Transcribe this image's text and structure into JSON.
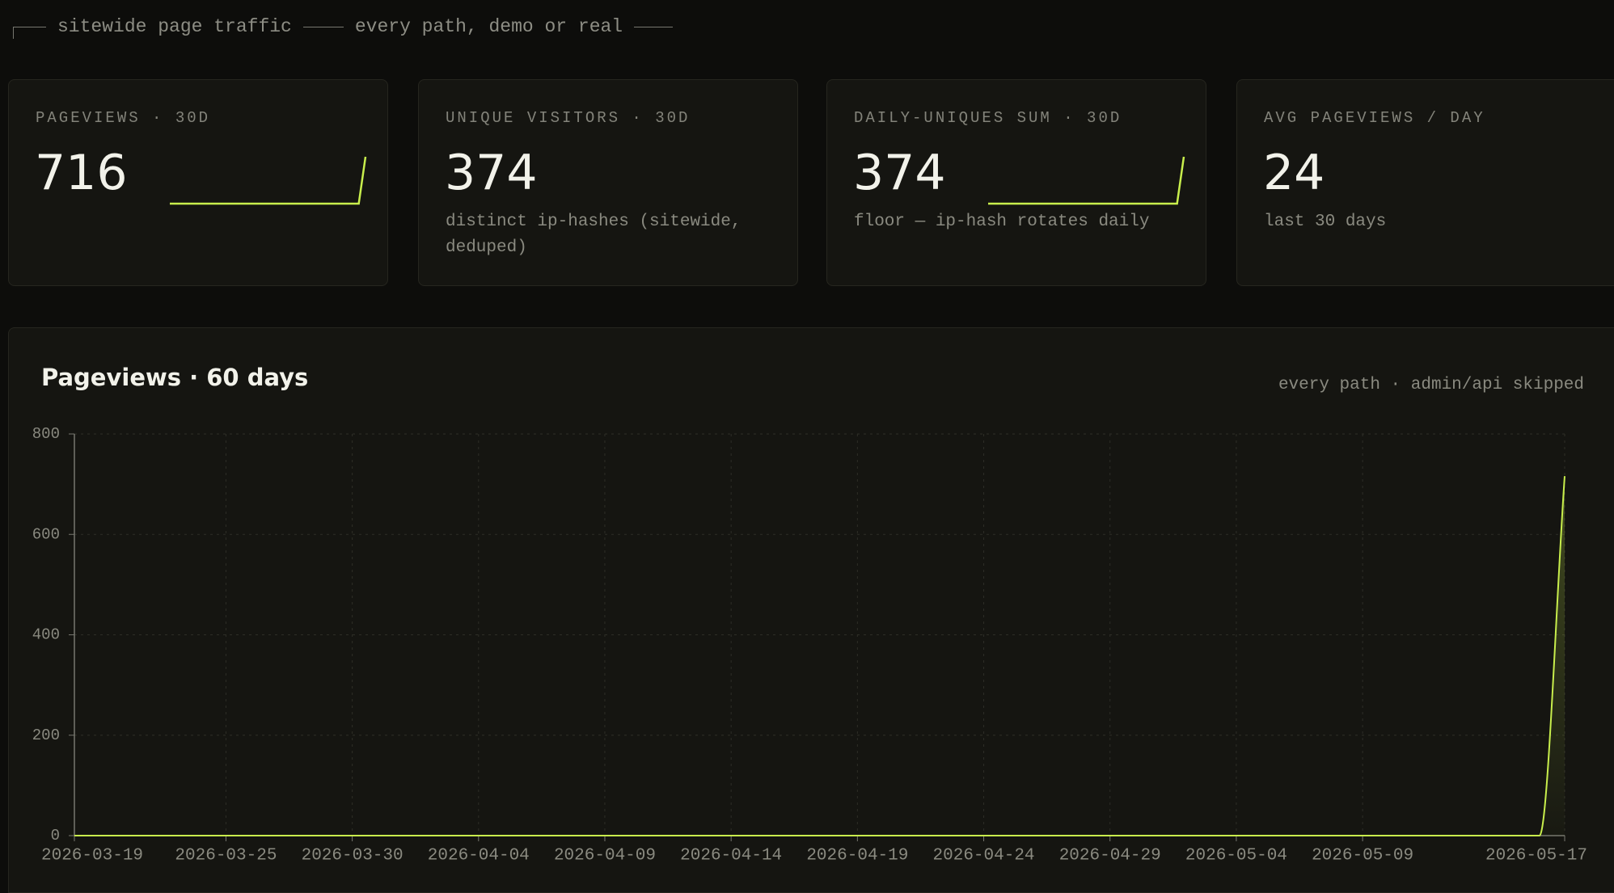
{
  "header": {
    "title": "sitewide page traffic",
    "subtitle": "every path, demo or real"
  },
  "cards": [
    {
      "label": "PAGEVIEWS · 30D",
      "value": 716,
      "sparkline": [
        0,
        0,
        0,
        0,
        0,
        0,
        0,
        0,
        0,
        0,
        0,
        0,
        0,
        0,
        0,
        0,
        0,
        0,
        0,
        0,
        0,
        0,
        0,
        0,
        0,
        0,
        0,
        0,
        0,
        716
      ]
    },
    {
      "label": "UNIQUE VISITORS · 30D",
      "value": 374,
      "note": "distinct ip-hashes (sitewide, deduped)"
    },
    {
      "label": "DAILY-UNIQUES SUM · 30D",
      "value": 374,
      "note": "floor — ip-hash rotates daily",
      "sparkline": [
        0,
        0,
        0,
        0,
        0,
        0,
        0,
        0,
        0,
        0,
        0,
        0,
        0,
        0,
        0,
        0,
        0,
        0,
        0,
        0,
        0,
        0,
        0,
        0,
        0,
        0,
        0,
        0,
        0,
        374
      ]
    },
    {
      "label": "AVG PAGEVIEWS / DAY",
      "value": 24,
      "note": "last 30 days"
    }
  ],
  "chart_data": {
    "type": "line",
    "title": "Pageviews · 60 days",
    "subtitle": "every path · admin/api skipped",
    "color": "#c8ee4c",
    "grid": true,
    "x": [
      "2026-03-19",
      "2026-03-20",
      "2026-03-21",
      "2026-03-22",
      "2026-03-23",
      "2026-03-24",
      "2026-03-25",
      "2026-03-26",
      "2026-03-27",
      "2026-03-28",
      "2026-03-29",
      "2026-03-30",
      "2026-03-31",
      "2026-04-01",
      "2026-04-02",
      "2026-04-03",
      "2026-04-04",
      "2026-04-05",
      "2026-04-06",
      "2026-04-07",
      "2026-04-08",
      "2026-04-09",
      "2026-04-10",
      "2026-04-11",
      "2026-04-12",
      "2026-04-13",
      "2026-04-14",
      "2026-04-15",
      "2026-04-16",
      "2026-04-17",
      "2026-04-18",
      "2026-04-19",
      "2026-04-20",
      "2026-04-21",
      "2026-04-22",
      "2026-04-23",
      "2026-04-24",
      "2026-04-25",
      "2026-04-26",
      "2026-04-27",
      "2026-04-28",
      "2026-04-29",
      "2026-04-30",
      "2026-05-01",
      "2026-05-02",
      "2026-05-03",
      "2026-05-04",
      "2026-05-05",
      "2026-05-06",
      "2026-05-07",
      "2026-05-08",
      "2026-05-09",
      "2026-05-10",
      "2026-05-11",
      "2026-05-12",
      "2026-05-13",
      "2026-05-14",
      "2026-05-15",
      "2026-05-16",
      "2026-05-17"
    ],
    "values": [
      0,
      0,
      0,
      0,
      0,
      0,
      0,
      0,
      0,
      0,
      0,
      0,
      0,
      0,
      0,
      0,
      0,
      0,
      0,
      0,
      0,
      0,
      0,
      0,
      0,
      0,
      0,
      0,
      0,
      0,
      0,
      0,
      0,
      0,
      0,
      0,
      0,
      0,
      0,
      0,
      0,
      0,
      0,
      0,
      0,
      0,
      0,
      0,
      0,
      0,
      0,
      0,
      0,
      0,
      0,
      0,
      0,
      0,
      0,
      716
    ],
    "xlim": [
      "2026-03-19",
      "2026-05-17"
    ],
    "xticks": [
      "2026-03-19",
      "2026-03-25",
      "2026-03-30",
      "2026-04-04",
      "2026-04-09",
      "2026-04-14",
      "2026-04-19",
      "2026-04-24",
      "2026-04-29",
      "2026-05-04",
      "2026-05-09",
      "2026-05-17"
    ],
    "ylim": [
      0,
      800
    ],
    "yticks": [
      0,
      200,
      400,
      600,
      800
    ]
  }
}
